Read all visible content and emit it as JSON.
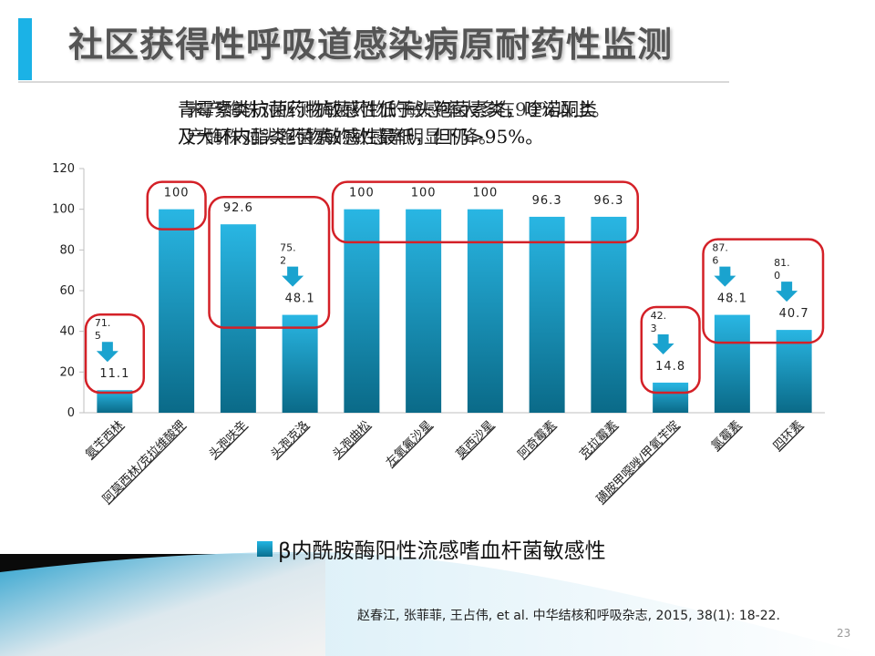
{
  "slide": {
    "title": "社区获得性呼吸道感染病原耐药性监测",
    "note_lines": [
      "青霉素类抗菌药物敏感性低于头孢菌素类，喹诺酮类",
      "及大环内酯类药物敏感性最低，但仍>95%。"
    ],
    "note_overlay_lines": [
      "未产酶株对所测抗菌药物的敏感率大多在90%以上。",
      "产酶株对头孢菌素的敏感率明显下降。"
    ],
    "legend_label": "β内酰胺酶阳性流感嗜血杆菌敏感性",
    "reference": "赵春江, 张菲菲, 王占伟, et al. 中华结核和呼吸杂志, 2015, 38(1): 18-22.",
    "page_number": "23",
    "colors": {
      "accent": "#1bb2e6",
      "bar_top": "#29b6e3",
      "bar_bottom": "#0a6a88",
      "highlight": "#d42027",
      "arrow": "#1aa3cf"
    }
  },
  "chart_data": {
    "type": "bar",
    "categories": [
      "氨苄西林",
      "阿莫西林/克拉维酸钾",
      "头孢呋辛",
      "头孢克洛",
      "头孢曲松",
      "左氧氟沙星",
      "莫西沙星",
      "阿奇霉素",
      "克拉霉素",
      "磺胺甲噁唑/甲氧苄啶",
      "氯霉素",
      "四环素"
    ],
    "series": [
      {
        "name": "β内酰胺酶阳性流感嗜血杆菌敏感性",
        "values": [
          11.1,
          100,
          92.6,
          48.1,
          100,
          100,
          100,
          96.3,
          96.3,
          14.8,
          48.1,
          40.7
        ]
      }
    ],
    "data_labels": [
      "11.1",
      "100",
      "92.6",
      "48.1",
      "100",
      "100",
      "100",
      "96.3",
      "96.3",
      "14.8",
      "48.1",
      "40.7"
    ],
    "comparison_annotations": [
      {
        "category": "氨苄西林",
        "value": "71.5",
        "lines": [
          "71.",
          "5"
        ]
      },
      {
        "category": "头孢克洛",
        "value": "75.2",
        "lines": [
          "75.",
          "2"
        ]
      },
      {
        "category": "磺胺甲噁唑/甲氧苄啶",
        "value": "42.3",
        "lines": [
          "42.",
          "3"
        ]
      },
      {
        "category": "氯霉素",
        "value": "87.6",
        "lines": [
          "87.",
          "6"
        ]
      },
      {
        "category": "四环素",
        "value": "81.0",
        "lines": [
          "81.",
          "0"
        ]
      }
    ],
    "highlight_groups": [
      [
        "氨苄西林"
      ],
      [
        "阿莫西林/克拉维酸钾"
      ],
      [
        "头孢呋辛",
        "头孢克洛"
      ],
      [
        "头孢曲松",
        "左氧氟沙星",
        "莫西沙星",
        "阿奇霉素",
        "克拉霉素"
      ],
      [
        "磺胺甲噁唑/甲氧苄啶"
      ],
      [
        "氯霉素",
        "四环素"
      ]
    ],
    "ylim": [
      0,
      120
    ],
    "yticks": [
      "0",
      "20",
      "40",
      "60",
      "80",
      "100",
      "120"
    ],
    "xlabel": "",
    "ylabel": "",
    "grid": false,
    "legend_position": "bottom"
  }
}
